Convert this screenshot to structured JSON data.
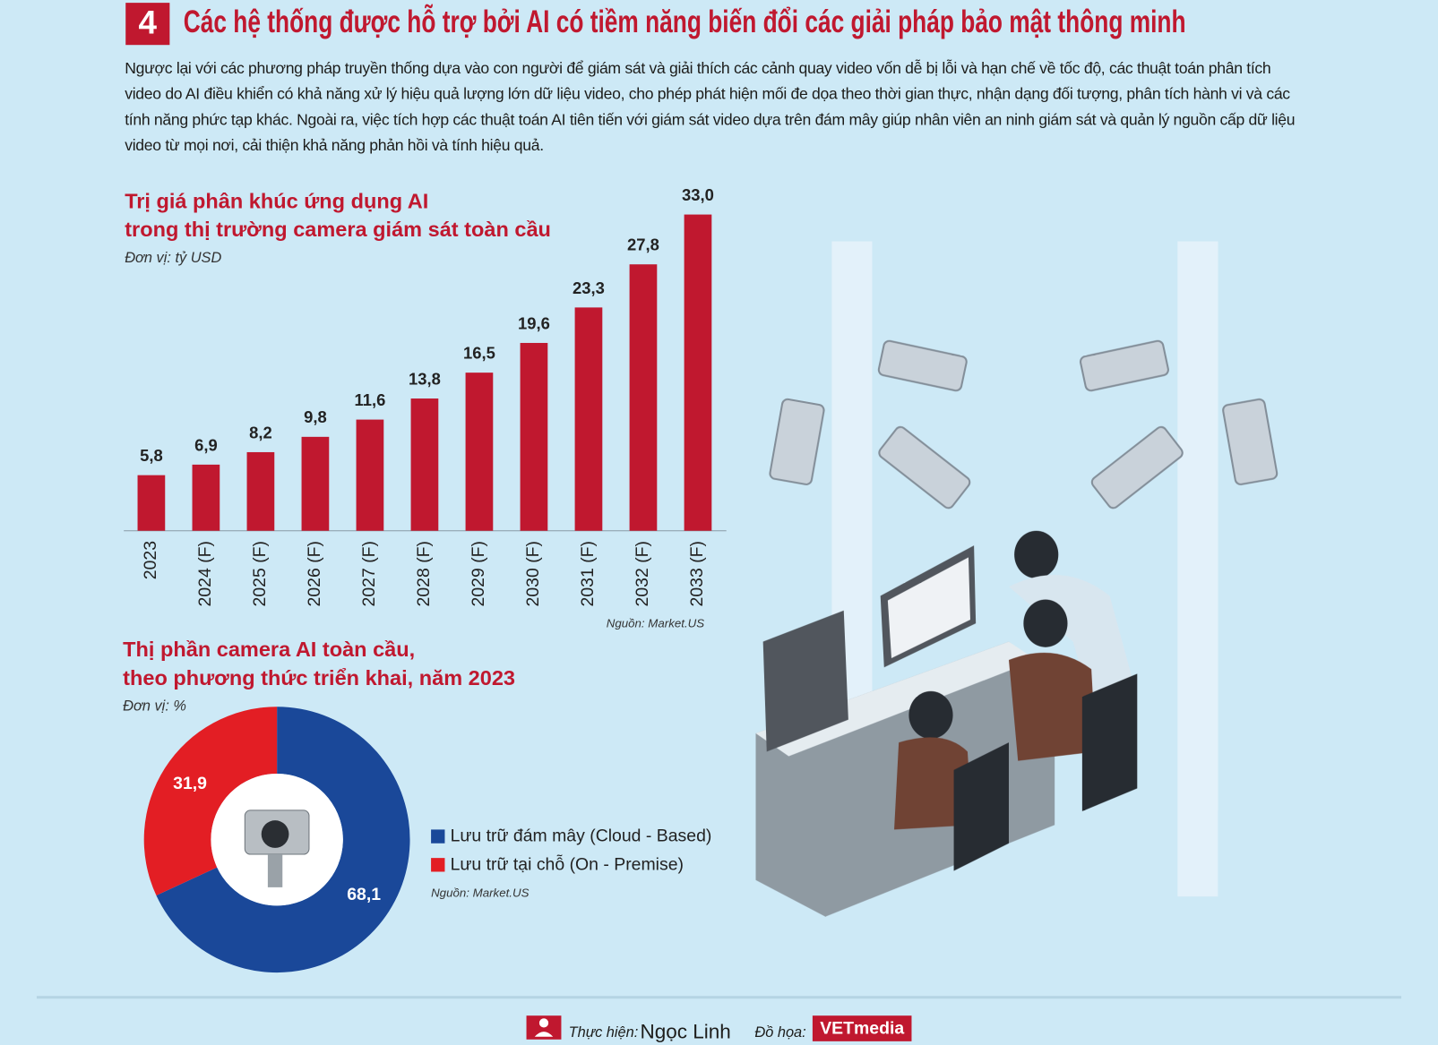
{
  "header": {
    "number": "4",
    "title": "Các hệ thống được hỗ trợ bởi AI có tiềm năng biến đổi các giải pháp bảo mật thông minh",
    "paragraph": "Ngược lại với các phương pháp truyền thống dựa vào con người để giám sát và giải thích các cảnh quay video vốn dễ bị lỗi và hạn chế về tốc độ, các thuật toán phân tích video do AI điều khiển có khả năng xử lý hiệu quả lượng lớn dữ liệu video, cho phép phát hiện mối đe dọa theo thời gian thực, nhận dạng đối tượng, phân tích hành vi và các tính năng phức tạp khác. Ngoài ra, việc tích hợp các thuật toán AI tiên tiến với giám sát video dựa trên đám mây giúp nhân viên an ninh giám sát và quản lý nguồn cấp dữ liệu video từ mọi nơi, cải thiện khả năng phản hồi và tính hiệu quả."
  },
  "chart_data": [
    {
      "type": "bar",
      "title": [
        "Trị giá phân khúc ứng dụng AI",
        "trong thị trường camera giám sát toàn cầu"
      ],
      "unit": "Đơn vị: tỷ USD",
      "source": "Nguồn: Market.US",
      "categories": [
        "2023",
        "2024 (F)",
        "2025 (F)",
        "2026 (F)",
        "2027 (F)",
        "2028 (F)",
        "2029 (F)",
        "2030 (F)",
        "2031 (F)",
        "2032 (F)",
        "2033 (F)"
      ],
      "values": [
        5.8,
        6.9,
        8.2,
        9.8,
        11.6,
        13.8,
        16.5,
        19.6,
        23.3,
        27.8,
        33.0
      ],
      "value_labels": [
        "5,8",
        "6,9",
        "8,2",
        "9,8",
        "11,6",
        "13,8",
        "16,5",
        "19,6",
        "23,3",
        "27,8",
        "33,0"
      ],
      "color": "#c0182f",
      "ylim": [
        0,
        33
      ]
    },
    {
      "type": "pie",
      "title": [
        "Thị phần camera AI toàn cầu,",
        "theo phương thức triển khai, năm 2023"
      ],
      "unit": "Đơn vị: %",
      "source": "Nguồn: Market.US",
      "categories": [
        "Lưu trữ đám mây (Cloud - Based)",
        "Lưu trữ tại chỗ (On - Premise)"
      ],
      "values": [
        68.1,
        31.9
      ],
      "value_labels": [
        "68,1",
        "31,9"
      ],
      "colors": [
        "#1a4899",
        "#e31e24"
      ]
    }
  ],
  "footer": {
    "made_by_label": "Thực hiện:",
    "made_by": "Ngọc Linh",
    "graphics_label": "Đồ họa:",
    "graphics_brand": "VETmedia"
  }
}
